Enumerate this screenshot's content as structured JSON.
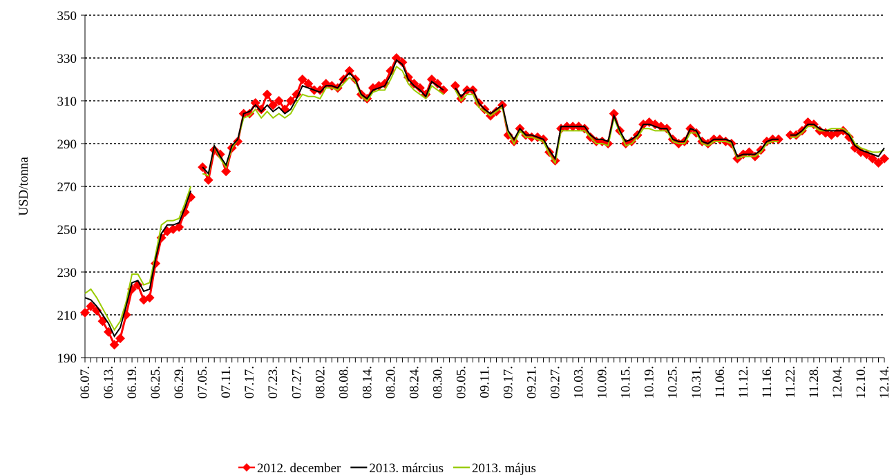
{
  "chart_data": {
    "type": "line",
    "ylabel": "USD/tonna",
    "categories": [
      "06.07.",
      null,
      null,
      null,
      "06.13.",
      null,
      null,
      null,
      "06.19.",
      null,
      null,
      null,
      "06.25.",
      null,
      null,
      null,
      "06.29.",
      null,
      null,
      null,
      "07.05.",
      null,
      null,
      null,
      "07.11.",
      null,
      null,
      null,
      "07.17.",
      null,
      null,
      null,
      "07.23.",
      null,
      null,
      null,
      "07.27.",
      null,
      null,
      null,
      "08.02.",
      null,
      null,
      null,
      "08.08.",
      null,
      null,
      null,
      "08.14.",
      null,
      null,
      null,
      "08.20.",
      null,
      null,
      null,
      "08.24.",
      null,
      null,
      null,
      "08.30.",
      null,
      null,
      null,
      "09.05.",
      null,
      null,
      null,
      "09.11.",
      null,
      null,
      null,
      "09.17.",
      null,
      null,
      null,
      "09.21.",
      null,
      null,
      null,
      "09.27.",
      null,
      null,
      null,
      "10.03.",
      null,
      null,
      null,
      "10.09.",
      null,
      null,
      null,
      "10.15.",
      null,
      null,
      null,
      "10.19.",
      null,
      null,
      null,
      "10.25.",
      null,
      null,
      null,
      "10.31.",
      null,
      null,
      null,
      "11.06.",
      null,
      null,
      null,
      "11.12.",
      null,
      null,
      null,
      "11.16.",
      null,
      null,
      null,
      "11.22.",
      null,
      null,
      null,
      "11.28.",
      null,
      null,
      null,
      "12.04.",
      null,
      null,
      null,
      "12.10.",
      null,
      null,
      null,
      "12.14."
    ],
    "series": [
      {
        "name": "2012. december",
        "color": "#ff0000",
        "marker": "diamond",
        "values": [
          211,
          214,
          212,
          207,
          202,
          196,
          199,
          210,
          222,
          224,
          217,
          218,
          234,
          246,
          249,
          250,
          251,
          258,
          265,
          null,
          279,
          273,
          287,
          285,
          277,
          288,
          291,
          304,
          304,
          309,
          306,
          313,
          308,
          310,
          306,
          310,
          313,
          320,
          318,
          315,
          315,
          318,
          317,
          316,
          320,
          324,
          320,
          313,
          311,
          316,
          317,
          318,
          324,
          330,
          328,
          321,
          318,
          316,
          313,
          320,
          318,
          315,
          null,
          317,
          311,
          315,
          315,
          309,
          306,
          303,
          305,
          308,
          294,
          291,
          297,
          294,
          293,
          293,
          292,
          286,
          282,
          297,
          298,
          298,
          298,
          297,
          293,
          291,
          291,
          290,
          304,
          296,
          290,
          291,
          294,
          299,
          300,
          299,
          298,
          297,
          292,
          290,
          291,
          297,
          295,
          291,
          290,
          292,
          292,
          291,
          290,
          283,
          285,
          286,
          284,
          287,
          291,
          292,
          292,
          null,
          294,
          294,
          296,
          300,
          299,
          296,
          295,
          294,
          295,
          296,
          293,
          288,
          286,
          285,
          283,
          281,
          283
        ]
      },
      {
        "name": "2013. március",
        "color": "#000000",
        "values": [
          218,
          217,
          214,
          210,
          206,
          200,
          204,
          214,
          225,
          226,
          221,
          222,
          236,
          248,
          252,
          252,
          253,
          260,
          268,
          null,
          279,
          276,
          289,
          284,
          280,
          289,
          292,
          304,
          305,
          308,
          305,
          308,
          305,
          307,
          304,
          306,
          311,
          317,
          316,
          315,
          314,
          317,
          317,
          316,
          320,
          323,
          320,
          313,
          311,
          315,
          316,
          317,
          322,
          329,
          327,
          320,
          317,
          315,
          312,
          319,
          317,
          315,
          null,
          316,
          312,
          315,
          315,
          309,
          306,
          304,
          306,
          308,
          296,
          292,
          297,
          294,
          294,
          293,
          292,
          287,
          283,
          298,
          298,
          298,
          298,
          298,
          294,
          292,
          292,
          291,
          303,
          296,
          291,
          292,
          294,
          299,
          299,
          298,
          297,
          297,
          292,
          291,
          291,
          297,
          296,
          291,
          290,
          292,
          292,
          292,
          291,
          284,
          285,
          285,
          285,
          287,
          291,
          292,
          292,
          null,
          294,
          294,
          296,
          299,
          299,
          297,
          296,
          296,
          296,
          296,
          294,
          289,
          287,
          286,
          285,
          284,
          288
        ]
      },
      {
        "name": "2013. május",
        "color": "#99cc00",
        "values": [
          220,
          222,
          218,
          213,
          208,
          203,
          207,
          216,
          229,
          229,
          224,
          225,
          238,
          252,
          254,
          254,
          255,
          262,
          270,
          null,
          276,
          275,
          289,
          283,
          279,
          288,
          292,
          302,
          303,
          306,
          302,
          305,
          302,
          304,
          302,
          304,
          309,
          313,
          312,
          312,
          311,
          316,
          316,
          315,
          318,
          321,
          319,
          312,
          310,
          314,
          315,
          315,
          320,
          326,
          324,
          318,
          315,
          313,
          311,
          317,
          315,
          313,
          null,
          315,
          310,
          313,
          313,
          307,
          305,
          303,
          305,
          307,
          295,
          290,
          296,
          293,
          293,
          292,
          291,
          285,
          281,
          296,
          296,
          296,
          296,
          296,
          293,
          290,
          290,
          289,
          302,
          295,
          289,
          290,
          293,
          297,
          297,
          296,
          296,
          296,
          291,
          290,
          290,
          295,
          295,
          290,
          289,
          291,
          291,
          291,
          290,
          283,
          284,
          284,
          284,
          286,
          290,
          291,
          291,
          null,
          293,
          293,
          295,
          298,
          298,
          296,
          296,
          297,
          297,
          297,
          295,
          290,
          288,
          287,
          286,
          286,
          287
        ]
      }
    ],
    "ylim": [
      190,
      350
    ],
    "yticks": [
      190,
      210,
      230,
      250,
      270,
      290,
      310,
      330,
      350
    ],
    "grid": true,
    "legend": "bottom"
  }
}
